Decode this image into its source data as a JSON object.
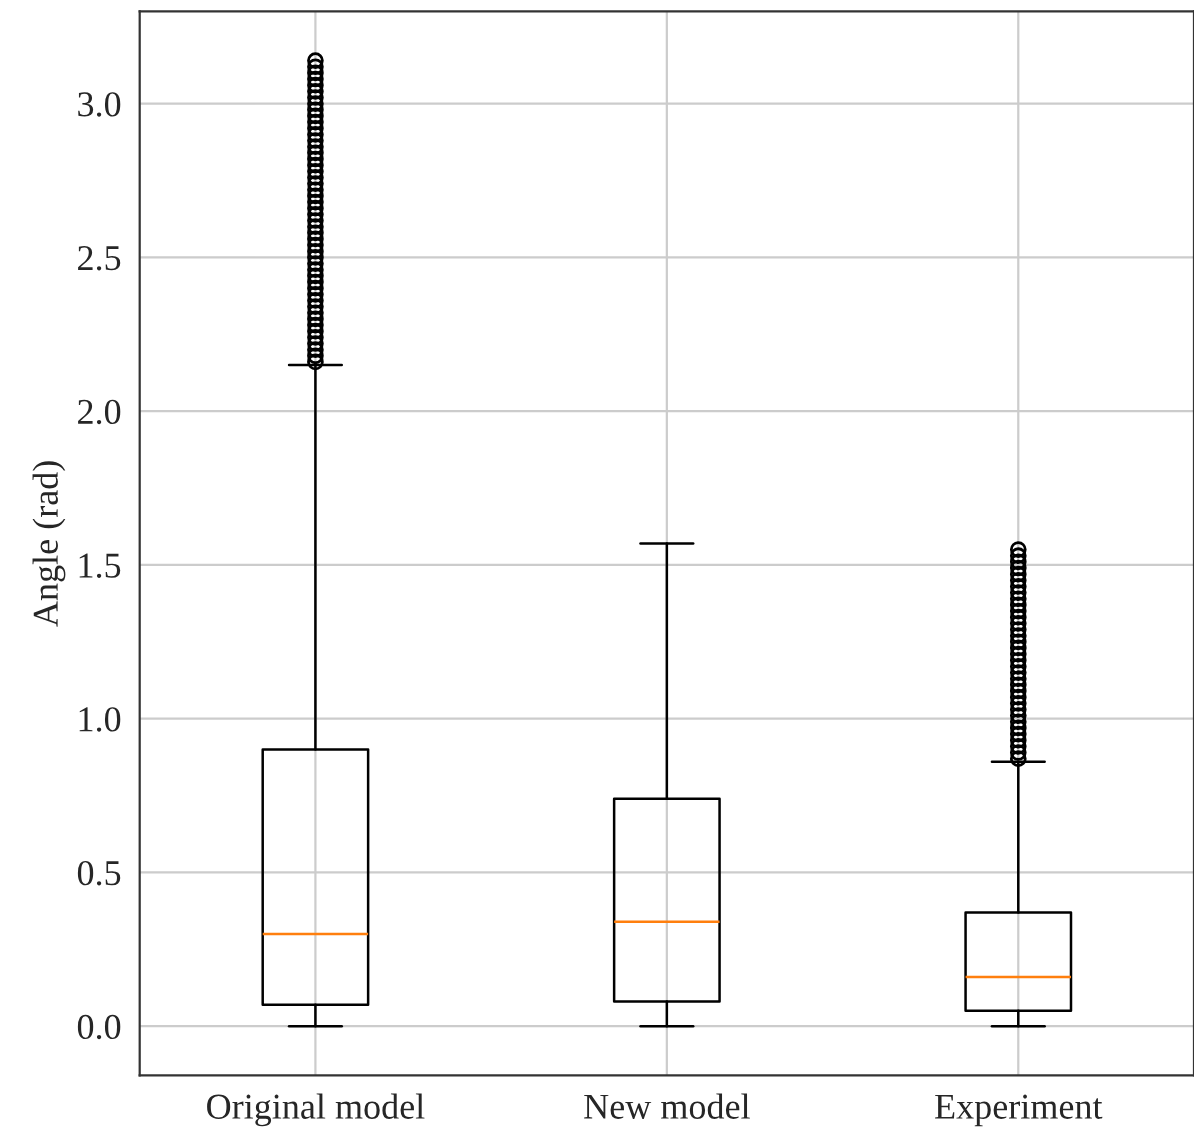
{
  "chart_data": {
    "type": "box",
    "ylabel": "Angle (rad)",
    "categories": [
      "Original model",
      "New model",
      "Experiment"
    ],
    "boxes": [
      {
        "low": 0.0,
        "q1": 0.07,
        "median": 0.3,
        "q3": 0.9,
        "high": 2.15,
        "outliers": [
          2.16,
          2.18,
          2.2,
          2.22,
          2.24,
          2.26,
          2.28,
          2.3,
          2.32,
          2.34,
          2.36,
          2.38,
          2.4,
          2.42,
          2.44,
          2.46,
          2.48,
          2.5,
          2.52,
          2.54,
          2.56,
          2.58,
          2.6,
          2.62,
          2.64,
          2.66,
          2.68,
          2.7,
          2.72,
          2.74,
          2.76,
          2.78,
          2.8,
          2.82,
          2.84,
          2.86,
          2.88,
          2.9,
          2.92,
          2.94,
          2.96,
          2.98,
          3.0,
          3.02,
          3.04,
          3.06,
          3.08,
          3.1,
          3.12,
          3.14
        ]
      },
      {
        "low": 0.0,
        "q1": 0.08,
        "median": 0.34,
        "q3": 0.74,
        "high": 1.57
      },
      {
        "low": 0.0,
        "q1": 0.05,
        "median": 0.16,
        "q3": 0.37,
        "high": 0.86,
        "outliers": [
          0.87,
          0.89,
          0.91,
          0.93,
          0.95,
          0.97,
          0.99,
          1.01,
          1.03,
          1.05,
          1.07,
          1.09,
          1.11,
          1.13,
          1.15,
          1.17,
          1.19,
          1.21,
          1.23,
          1.25,
          1.27,
          1.29,
          1.31,
          1.33,
          1.35,
          1.37,
          1.39,
          1.41,
          1.43,
          1.45,
          1.47,
          1.49,
          1.51,
          1.53,
          1.55
        ]
      }
    ],
    "ylim": [
      -0.16,
      3.3
    ],
    "yticks": [
      {
        "value": 0,
        "label": "0.0"
      },
      {
        "value": 0.5,
        "label": "0.5"
      },
      {
        "value": 1,
        "label": "1.0"
      },
      {
        "value": 1.5,
        "label": "1.5"
      },
      {
        "value": 2,
        "label": "2.0"
      },
      {
        "value": 2.5,
        "label": "2.5"
      },
      {
        "value": 3,
        "label": "3.0"
      }
    ],
    "grid": true
  }
}
